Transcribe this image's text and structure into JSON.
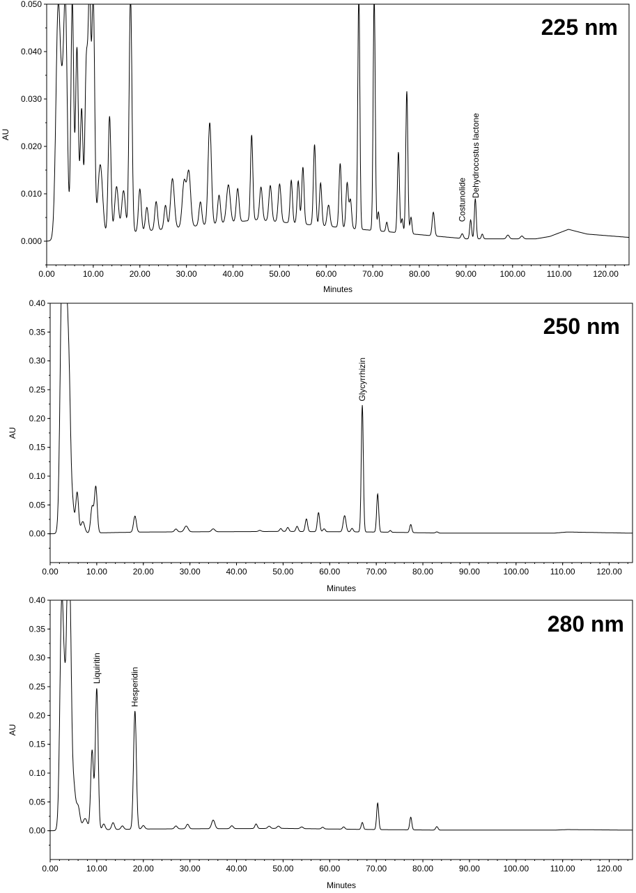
{
  "chart_data": [
    {
      "type": "line",
      "title": "225 nm",
      "xlabel": "Minutes",
      "ylabel": "AU",
      "xlim": [
        0,
        125
      ],
      "ylim": [
        -0.005,
        0.05
      ],
      "xticks": [
        "0.00",
        "10.00",
        "20.00",
        "30.00",
        "40.00",
        "50.00",
        "60.00",
        "70.00",
        "80.00",
        "90.00",
        "100.00",
        "110.00",
        "120.00"
      ],
      "yticks": [
        "0.000",
        "0.010",
        "0.020",
        "0.030",
        "0.040",
        "0.050"
      ],
      "baseline": [
        [
          0,
          0
        ],
        [
          45,
          0.0045
        ],
        [
          90,
          0.0005
        ],
        [
          105,
          0.0005
        ],
        [
          108,
          0.001
        ],
        [
          112,
          0.0025
        ],
        [
          116,
          0.0015
        ],
        [
          125,
          0.0008
        ]
      ],
      "peaks": [
        {
          "x": 2.5,
          "y": 0.05,
          "w": 0.5
        },
        {
          "x": 3.3,
          "y": 0.012,
          "w": 0.3
        },
        {
          "x": 4.0,
          "y": 0.05,
          "w": 0.4
        },
        {
          "x": 5.5,
          "y": 0.05,
          "w": 0.3
        },
        {
          "x": 6.5,
          "y": 0.04,
          "w": 0.3
        },
        {
          "x": 7.5,
          "y": 0.027,
          "w": 0.3
        },
        {
          "x": 8.5,
          "y": 0.035,
          "w": 0.3
        },
        {
          "x": 9.2,
          "y": 0.05,
          "w": 0.3
        },
        {
          "x": 10.0,
          "y": 0.05,
          "w": 0.3
        },
        {
          "x": 11.5,
          "y": 0.015,
          "w": 0.5
        },
        {
          "x": 13.5,
          "y": 0.025,
          "w": 0.3
        },
        {
          "x": 15.0,
          "y": 0.01,
          "w": 0.4
        },
        {
          "x": 16.5,
          "y": 0.009,
          "w": 0.4
        },
        {
          "x": 18.0,
          "y": 0.05,
          "w": 0.3
        },
        {
          "x": 20.0,
          "y": 0.009,
          "w": 0.3
        },
        {
          "x": 21.5,
          "y": 0.005,
          "w": 0.3
        },
        {
          "x": 23.5,
          "y": 0.006,
          "w": 0.3
        },
        {
          "x": 25.5,
          "y": 0.005,
          "w": 0.3
        },
        {
          "x": 27.0,
          "y": 0.0105,
          "w": 0.4
        },
        {
          "x": 29.5,
          "y": 0.0095,
          "w": 0.4
        },
        {
          "x": 30.5,
          "y": 0.0115,
          "w": 0.4
        },
        {
          "x": 33.0,
          "y": 0.005,
          "w": 0.3
        },
        {
          "x": 35.0,
          "y": 0.0215,
          "w": 0.35
        },
        {
          "x": 37.0,
          "y": 0.006,
          "w": 0.3
        },
        {
          "x": 39.0,
          "y": 0.008,
          "w": 0.4
        },
        {
          "x": 41.0,
          "y": 0.007,
          "w": 0.3
        },
        {
          "x": 44.0,
          "y": 0.018,
          "w": 0.25
        },
        {
          "x": 46.0,
          "y": 0.007,
          "w": 0.3
        },
        {
          "x": 48.0,
          "y": 0.0075,
          "w": 0.3
        },
        {
          "x": 50.0,
          "y": 0.008,
          "w": 0.3
        },
        {
          "x": 52.5,
          "y": 0.009,
          "w": 0.25
        },
        {
          "x": 54.0,
          "y": 0.009,
          "w": 0.25
        },
        {
          "x": 55.0,
          "y": 0.012,
          "w": 0.25
        },
        {
          "x": 57.5,
          "y": 0.017,
          "w": 0.25
        },
        {
          "x": 58.8,
          "y": 0.009,
          "w": 0.25
        },
        {
          "x": 60.5,
          "y": 0.0045,
          "w": 0.3
        },
        {
          "x": 63.0,
          "y": 0.0135,
          "w": 0.25
        },
        {
          "x": 64.5,
          "y": 0.0095,
          "w": 0.25
        },
        {
          "x": 65.2,
          "y": 0.006,
          "w": 0.25
        },
        {
          "x": 67.0,
          "y": 0.05,
          "w": 0.22
        },
        {
          "x": 70.3,
          "y": 0.05,
          "w": 0.22
        },
        {
          "x": 71.2,
          "y": 0.004,
          "w": 0.2
        },
        {
          "x": 73.0,
          "y": 0.002,
          "w": 0.2
        },
        {
          "x": 75.5,
          "y": 0.017,
          "w": 0.22
        },
        {
          "x": 76.3,
          "y": 0.003,
          "w": 0.2
        },
        {
          "x": 77.3,
          "y": 0.03,
          "w": 0.22
        },
        {
          "x": 78.2,
          "y": 0.0035,
          "w": 0.2
        },
        {
          "x": 83.0,
          "y": 0.005,
          "w": 0.25
        },
        {
          "x": 89.2,
          "y": 0.001,
          "w": 0.25
        },
        {
          "x": 91.0,
          "y": 0.004,
          "w": 0.2
        },
        {
          "x": 92.0,
          "y": 0.0085,
          "w": 0.2
        },
        {
          "x": 93.5,
          "y": 0.001,
          "w": 0.2
        },
        {
          "x": 99.0,
          "y": 0.0008,
          "w": 0.3
        },
        {
          "x": 102.0,
          "y": 0.0006,
          "w": 0.3
        }
      ],
      "annotations": [
        {
          "text": "Costunolide",
          "x": 89.2,
          "y": 0.0035
        },
        {
          "text": "Dehydrocostus lactone",
          "x": 92.1,
          "y": 0.0085
        }
      ]
    },
    {
      "type": "line",
      "title": "250 nm",
      "xlabel": "Minutes",
      "ylabel": "AU",
      "xlim": [
        0,
        125
      ],
      "ylim": [
        -0.05,
        0.4
      ],
      "xticks": [
        "0.00",
        "10.00",
        "20.00",
        "30.00",
        "40.00",
        "50.00",
        "60.00",
        "70.00",
        "80.00",
        "90.00",
        "100.00",
        "110.00",
        "120.00"
      ],
      "yticks": [
        "0.00",
        "0.05",
        "0.10",
        "0.15",
        "0.20",
        "0.25",
        "0.30",
        "0.35",
        "0.40"
      ],
      "baseline": [
        [
          0,
          0
        ],
        [
          20,
          0.003
        ],
        [
          50,
          0.004
        ],
        [
          70,
          0.003
        ],
        [
          85,
          0.001
        ],
        [
          108,
          0.001
        ],
        [
          111,
          0.003
        ],
        [
          125,
          0.001
        ]
      ],
      "peaks": [
        {
          "x": 2.5,
          "y": 0.4,
          "w": 0.4
        },
        {
          "x": 3.0,
          "y": 0.4,
          "w": 0.3
        },
        {
          "x": 3.6,
          "y": 0.3,
          "w": 0.3
        },
        {
          "x": 4.1,
          "y": 0.2,
          "w": 0.3
        },
        {
          "x": 4.7,
          "y": 0.06,
          "w": 0.4
        },
        {
          "x": 5.8,
          "y": 0.07,
          "w": 0.3
        },
        {
          "x": 7.0,
          "y": 0.02,
          "w": 0.4
        },
        {
          "x": 9.0,
          "y": 0.045,
          "w": 0.3
        },
        {
          "x": 9.8,
          "y": 0.08,
          "w": 0.3
        },
        {
          "x": 18.2,
          "y": 0.028,
          "w": 0.3
        },
        {
          "x": 27.0,
          "y": 0.005,
          "w": 0.3
        },
        {
          "x": 29.2,
          "y": 0.01,
          "w": 0.4
        },
        {
          "x": 35.0,
          "y": 0.005,
          "w": 0.35
        },
        {
          "x": 45.0,
          "y": 0.002,
          "w": 0.3
        },
        {
          "x": 49.5,
          "y": 0.005,
          "w": 0.25
        },
        {
          "x": 51.0,
          "y": 0.007,
          "w": 0.25
        },
        {
          "x": 53.0,
          "y": 0.009,
          "w": 0.25
        },
        {
          "x": 55.0,
          "y": 0.022,
          "w": 0.25
        },
        {
          "x": 57.6,
          "y": 0.033,
          "w": 0.25
        },
        {
          "x": 58.8,
          "y": 0.005,
          "w": 0.25
        },
        {
          "x": 63.2,
          "y": 0.028,
          "w": 0.3
        },
        {
          "x": 64.8,
          "y": 0.006,
          "w": 0.25
        },
        {
          "x": 67.0,
          "y": 0.22,
          "w": 0.22
        },
        {
          "x": 70.3,
          "y": 0.066,
          "w": 0.22
        },
        {
          "x": 73.0,
          "y": 0.003,
          "w": 0.2
        },
        {
          "x": 77.4,
          "y": 0.014,
          "w": 0.22
        },
        {
          "x": 83.0,
          "y": 0.002,
          "w": 0.25
        }
      ],
      "annotations": [
        {
          "text": "Glycyrrhizin",
          "x": 67.0,
          "y": 0.225
        }
      ]
    },
    {
      "type": "line",
      "title": "280 nm",
      "xlabel": "Minutes",
      "ylabel": "AU",
      "xlim": [
        0,
        125
      ],
      "ylim": [
        -0.05,
        0.4
      ],
      "xticks": [
        "0.00",
        "10.00",
        "20.00",
        "30.00",
        "40.00",
        "50.00",
        "60.00",
        "70.00",
        "80.00",
        "90.00",
        "100.00",
        "110.00",
        "120.00"
      ],
      "yticks": [
        "0.00",
        "0.05",
        "0.10",
        "0.15",
        "0.20",
        "0.25",
        "0.30",
        "0.35",
        "0.40"
      ],
      "baseline": [
        [
          0,
          0
        ],
        [
          20,
          0.003
        ],
        [
          50,
          0.004
        ],
        [
          70,
          0.002
        ],
        [
          85,
          0.001
        ],
        [
          108,
          0.001
        ],
        [
          111,
          0.002
        ],
        [
          125,
          0.001
        ]
      ],
      "peaks": [
        {
          "x": 2.5,
          "y": 0.4,
          "w": 0.4
        },
        {
          "x": 3.2,
          "y": 0.15,
          "w": 0.3
        },
        {
          "x": 3.8,
          "y": 0.4,
          "w": 0.3
        },
        {
          "x": 4.3,
          "y": 0.3,
          "w": 0.3
        },
        {
          "x": 5.0,
          "y": 0.08,
          "w": 0.4
        },
        {
          "x": 6.0,
          "y": 0.04,
          "w": 0.4
        },
        {
          "x": 7.5,
          "y": 0.02,
          "w": 0.5
        },
        {
          "x": 9.0,
          "y": 0.138,
          "w": 0.3
        },
        {
          "x": 10.0,
          "y": 0.245,
          "w": 0.3
        },
        {
          "x": 11.5,
          "y": 0.01,
          "w": 0.3
        },
        {
          "x": 13.5,
          "y": 0.012,
          "w": 0.3
        },
        {
          "x": 15.5,
          "y": 0.006,
          "w": 0.3
        },
        {
          "x": 18.2,
          "y": 0.205,
          "w": 0.3
        },
        {
          "x": 20.0,
          "y": 0.006,
          "w": 0.3
        },
        {
          "x": 27.0,
          "y": 0.005,
          "w": 0.3
        },
        {
          "x": 29.5,
          "y": 0.008,
          "w": 0.3
        },
        {
          "x": 35.0,
          "y": 0.015,
          "w": 0.35
        },
        {
          "x": 39.0,
          "y": 0.005,
          "w": 0.3
        },
        {
          "x": 44.2,
          "y": 0.008,
          "w": 0.25
        },
        {
          "x": 47.0,
          "y": 0.004,
          "w": 0.3
        },
        {
          "x": 49.0,
          "y": 0.004,
          "w": 0.3
        },
        {
          "x": 54.0,
          "y": 0.003,
          "w": 0.3
        },
        {
          "x": 58.5,
          "y": 0.003,
          "w": 0.25
        },
        {
          "x": 63.0,
          "y": 0.004,
          "w": 0.25
        },
        {
          "x": 67.0,
          "y": 0.012,
          "w": 0.22
        },
        {
          "x": 70.3,
          "y": 0.046,
          "w": 0.22
        },
        {
          "x": 77.4,
          "y": 0.022,
          "w": 0.22
        },
        {
          "x": 83.0,
          "y": 0.006,
          "w": 0.25
        }
      ],
      "annotations": [
        {
          "text": "Liquiritin",
          "x": 10.0,
          "y": 0.25
        },
        {
          "text": "Hesperidin",
          "x": 18.2,
          "y": 0.21
        }
      ]
    }
  ]
}
